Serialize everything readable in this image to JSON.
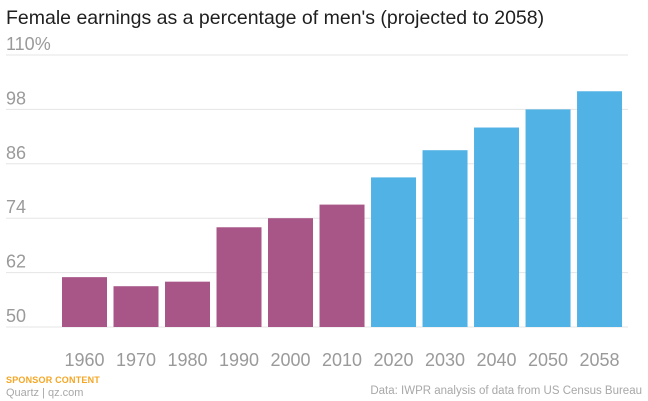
{
  "title": "Female earnings as a percentage of men's (projected to 2058)",
  "footer": {
    "sponsor": "SPONSOR CONTENT",
    "brand": "Quartz | qz.com",
    "source": "Data: IWPR analysis of data from US Census Bureau"
  },
  "colors": {
    "historical": "#a85688",
    "projected": "#51b2e5",
    "grid": "#e5e5e5",
    "tick_text": "#9a9a9a"
  },
  "chart_data": {
    "type": "bar",
    "title": "Female earnings as a percentage of men's (projected to 2058)",
    "xlabel": "",
    "ylabel": "",
    "categories": [
      "1960",
      "1970",
      "1980",
      "1990",
      "2000",
      "2010",
      "2020",
      "2030",
      "2040",
      "2050",
      "2058"
    ],
    "series": [
      {
        "values": [
          61,
          59,
          60,
          72,
          74,
          77,
          83,
          89,
          94,
          98,
          102
        ]
      }
    ],
    "bar_groups": [
      "historical",
      "historical",
      "historical",
      "historical",
      "historical",
      "historical",
      "projected",
      "projected",
      "projected",
      "projected",
      "projected"
    ],
    "ylim": [
      50,
      110
    ],
    "yticks": [
      50,
      62,
      74,
      86,
      98,
      110
    ],
    "ytick_labels": [
      "50",
      "62",
      "74",
      "86",
      "98",
      "110%"
    ],
    "grid": true,
    "legend": "none"
  }
}
